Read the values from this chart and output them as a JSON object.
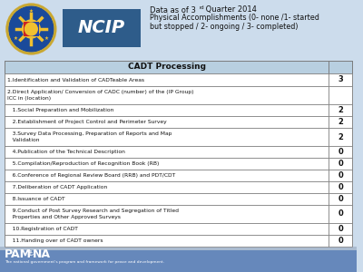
{
  "title_ncip": "NCIP",
  "table_header": "CADT Processing",
  "rows": [
    {
      "label": "1.Identification and Validation of CADTeable Areas",
      "value": "3",
      "tall": false
    },
    {
      "label": "2.Direct Application/ Conversion of CADC (number) of the (IP Group)\nICC in (location)",
      "value": "",
      "tall": true
    },
    {
      "label": "   1.Social Preparation and Mobilization",
      "value": "2",
      "tall": false
    },
    {
      "label": "   2.Establishment of Project Control and Perimeter Survey",
      "value": "2",
      "tall": false
    },
    {
      "label": "   3.Survey Data Processing, Preparation of Reports and Map\n   Validation",
      "value": "2",
      "tall": true
    },
    {
      "label": "   4.Publication of the Technical Description",
      "value": "0",
      "tall": false
    },
    {
      "label": "   5.Compilation/Reproduction of Recognition Book (RB)",
      "value": "0",
      "tall": false
    },
    {
      "label": "   6.Conference of Regional Review Board (RRB) and PDT/CDT",
      "value": "0",
      "tall": false
    },
    {
      "label": "   7.Deliberation of CADT Application",
      "value": "0",
      "tall": false
    },
    {
      "label": "   8.Issuance of CADT",
      "value": "0",
      "tall": false
    },
    {
      "label": "   9.Conduct of Post Survey Research and Segregation of Titled\n   Properties and Other Approved Surveys",
      "value": "0",
      "tall": true
    },
    {
      "label": "   10.Registration of CADT",
      "value": "0",
      "tall": false
    },
    {
      "label": "   11.Handing over of CADT owners",
      "value": "0",
      "tall": false
    }
  ],
  "bg_color": "#ccdcec",
  "table_header_bg": "#b8cfe0",
  "border_color": "#777777",
  "text_color": "#111111",
  "ncip_bg": "#2e5c8a",
  "ncip_text_color": "#ffffff",
  "footer_bg_top": "#8aaac8",
  "footer_bg_bot": "#2050a0",
  "footer_subtext": "The national government's program and framework for peace and development."
}
